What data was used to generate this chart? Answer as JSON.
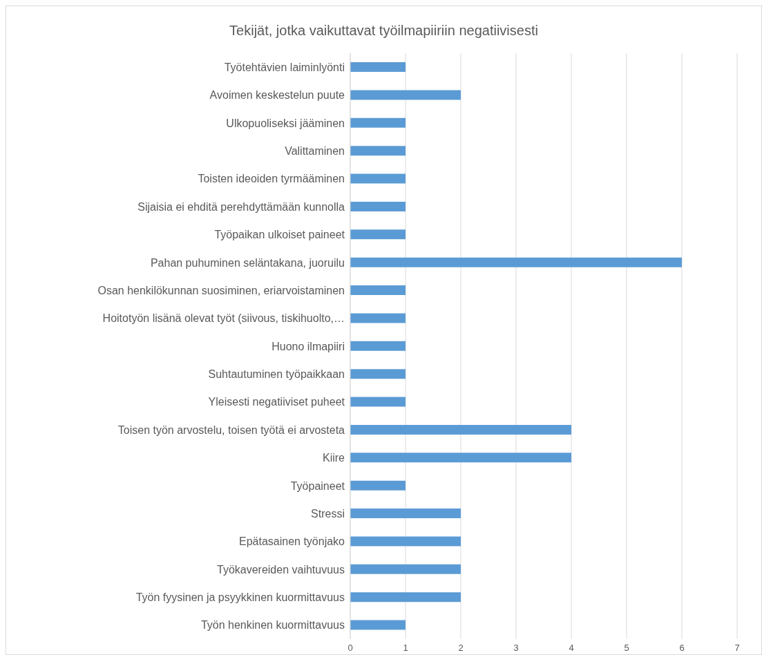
{
  "chart_data": {
    "type": "bar",
    "orientation": "horizontal",
    "title": "Tekijät, jotka vaikuttavat työilmapiiriin negatiivisesti",
    "categories": [
      "Työtehtävien laiminlyönti",
      "Avoimen keskestelun puute",
      "Ulkopuoliseksi jääminen",
      "Valittaminen",
      "Toisten ideoiden tyrmääminen",
      "Sijaisia ei ehditä perehdyttämään kunnolla",
      "Työpaikan ulkoiset paineet",
      "Pahan puhuminen seläntakana, juoruilu",
      "Osan henkilökunnan suosiminen, eriarvoistaminen",
      "Hoitotyön lisänä olevat työt (siivous, tiskihuolto,…",
      "Huono ilmapiiri",
      "Suhtautuminen työpaikkaan",
      "Yleisesti negatiiviset puheet",
      "Toisen työn arvostelu, toisen työtä ei arvosteta",
      "Kiire",
      "Työpaineet",
      "Stressi",
      "Epätasainen työnjako",
      "Työkavereiden vaihtuvuus",
      "Työn fyysinen ja psyykkinen kuormittavuus",
      "Työn henkinen kuormittavuus"
    ],
    "values": [
      1,
      2,
      1,
      1,
      1,
      1,
      1,
      6,
      1,
      1,
      1,
      1,
      1,
      4,
      4,
      1,
      2,
      2,
      2,
      2,
      1
    ],
    "color": "#5b9bd5",
    "xlim": [
      0,
      7
    ],
    "xticks": [
      0,
      1,
      2,
      3,
      4,
      5,
      6,
      7
    ],
    "grid": "x"
  }
}
